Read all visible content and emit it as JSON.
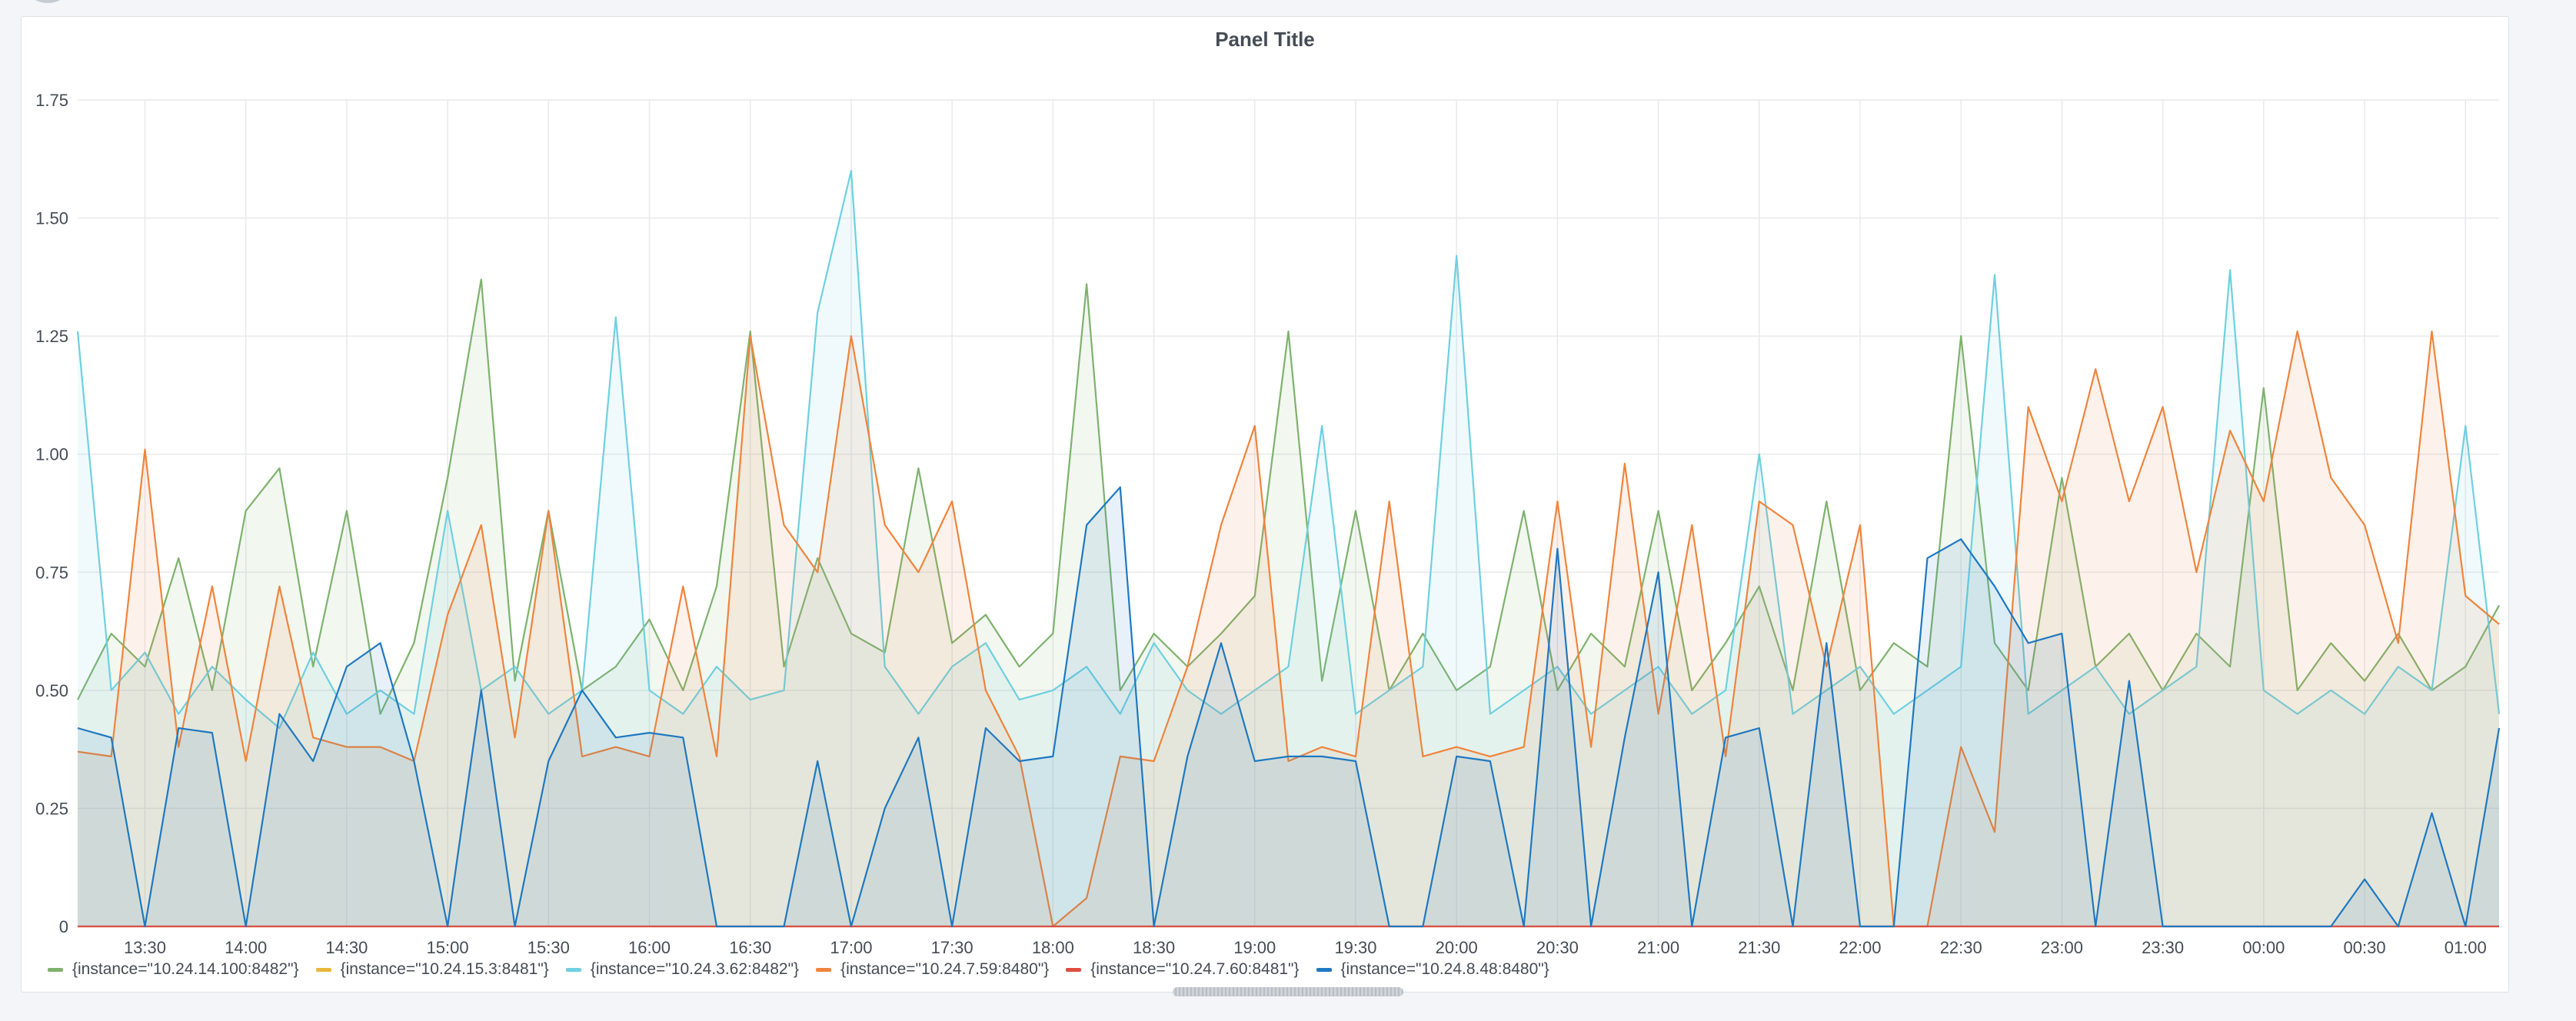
{
  "panel": {
    "title": "Panel Title"
  },
  "chart_data": {
    "type": "line",
    "title": "Panel Title",
    "xlabel": "",
    "ylabel": "",
    "ylim": [
      0,
      1.75
    ],
    "yticks": [
      "0",
      "0.25",
      "0.50",
      "0.75",
      "1.00",
      "1.25",
      "1.50",
      "1.75"
    ],
    "xticks": [
      "13:30",
      "14:00",
      "14:30",
      "15:00",
      "15:30",
      "16:00",
      "16:30",
      "17:00",
      "17:30",
      "18:00",
      "18:30",
      "19:00",
      "19:30",
      "20:00",
      "20:30",
      "21:00",
      "21:30",
      "22:00",
      "22:30",
      "23:00",
      "23:30",
      "00:00",
      "00:30",
      "01:00"
    ],
    "x_range": [
      "13:10",
      "01:10"
    ],
    "grid": true,
    "legend_position": "bottom-left",
    "stacked": false,
    "area_fill": true,
    "x": [
      "13:10",
      "13:20",
      "13:30",
      "13:40",
      "13:50",
      "14:00",
      "14:10",
      "14:20",
      "14:30",
      "14:40",
      "14:50",
      "15:00",
      "15:10",
      "15:20",
      "15:30",
      "15:40",
      "15:50",
      "16:00",
      "16:10",
      "16:20",
      "16:30",
      "16:40",
      "16:50",
      "17:00",
      "17:10",
      "17:20",
      "17:30",
      "17:40",
      "17:50",
      "18:00",
      "18:10",
      "18:20",
      "18:30",
      "18:40",
      "18:50",
      "19:00",
      "19:10",
      "19:20",
      "19:30",
      "19:40",
      "19:50",
      "20:00",
      "20:10",
      "20:20",
      "20:30",
      "20:40",
      "20:50",
      "21:00",
      "21:10",
      "21:20",
      "21:30",
      "21:40",
      "21:50",
      "22:00",
      "22:10",
      "22:20",
      "22:30",
      "22:40",
      "22:50",
      "23:00",
      "23:10",
      "23:20",
      "23:30",
      "23:40",
      "23:50",
      "00:00",
      "00:10",
      "00:20",
      "00:30",
      "00:40",
      "00:50",
      "01:00",
      "01:10"
    ],
    "series": [
      {
        "name": "{instance=\"10.24.14.100:8482\"}",
        "color": "#7eb26d",
        "values": [
          0.48,
          0.62,
          0.55,
          0.78,
          0.5,
          0.88,
          0.97,
          0.55,
          0.88,
          0.45,
          0.6,
          0.95,
          1.37,
          0.52,
          0.88,
          0.5,
          0.55,
          0.65,
          0.5,
          0.72,
          1.26,
          0.55,
          0.78,
          0.62,
          0.58,
          0.97,
          0.6,
          0.66,
          0.55,
          0.62,
          1.36,
          0.5,
          0.62,
          0.55,
          0.62,
          0.7,
          1.26,
          0.52,
          0.88,
          0.5,
          0.62,
          0.5,
          0.55,
          0.88,
          0.5,
          0.62,
          0.55,
          0.88,
          0.5,
          0.6,
          0.72,
          0.5,
          0.9,
          0.5,
          0.6,
          0.55,
          1.25,
          0.6,
          0.5,
          0.95,
          0.55,
          0.62,
          0.5,
          0.62,
          0.55,
          1.14,
          0.5,
          0.6,
          0.52,
          0.62,
          0.5,
          0.55,
          0.68
        ]
      },
      {
        "name": "{instance=\"10.24.15.3:8481\"}",
        "color": "#eab839",
        "values": [
          0,
          0,
          0,
          0,
          0,
          0,
          0,
          0,
          0,
          0,
          0,
          0,
          0,
          0,
          0,
          0,
          0,
          0,
          0,
          0,
          0,
          0,
          0,
          0,
          0,
          0,
          0,
          0,
          0,
          0,
          0,
          0,
          0,
          0,
          0,
          0,
          0,
          0,
          0,
          0,
          0,
          0,
          0,
          0,
          0,
          0,
          0,
          0,
          0,
          0,
          0,
          0,
          0,
          0,
          0,
          0,
          0,
          0,
          0,
          0,
          0,
          0,
          0,
          0,
          0,
          0,
          0,
          0,
          0,
          0,
          0,
          0,
          0
        ]
      },
      {
        "name": "{instance=\"10.24.3.62:8482\"}",
        "color": "#6ed0e0",
        "values": [
          1.26,
          0.5,
          0.58,
          0.45,
          0.55,
          0.48,
          0.42,
          0.58,
          0.45,
          0.5,
          0.45,
          0.88,
          0.5,
          0.55,
          0.45,
          0.5,
          1.29,
          0.5,
          0.45,
          0.55,
          0.48,
          0.5,
          1.3,
          1.6,
          0.55,
          0.45,
          0.55,
          0.6,
          0.48,
          0.5,
          0.55,
          0.45,
          0.6,
          0.5,
          0.45,
          0.5,
          0.55,
          1.06,
          0.45,
          0.5,
          0.55,
          1.42,
          0.45,
          0.5,
          0.55,
          0.45,
          0.5,
          0.55,
          0.45,
          0.5,
          1.0,
          0.45,
          0.5,
          0.55,
          0.45,
          0.5,
          0.55,
          1.38,
          0.45,
          0.5,
          0.55,
          0.45,
          0.5,
          0.55,
          1.39,
          0.5,
          0.45,
          0.5,
          0.45,
          0.55,
          0.5,
          1.06,
          0.45
        ]
      },
      {
        "name": "{instance=\"10.24.7.59:8480\"}",
        "color": "#ef843c",
        "values": [
          0.37,
          0.36,
          1.01,
          0.38,
          0.72,
          0.35,
          0.72,
          0.4,
          0.38,
          0.38,
          0.35,
          0.66,
          0.85,
          0.4,
          0.88,
          0.36,
          0.38,
          0.36,
          0.72,
          0.36,
          1.25,
          0.85,
          0.75,
          1.25,
          0.85,
          0.75,
          0.9,
          0.5,
          0.36,
          0.0,
          0.06,
          0.36,
          0.35,
          0.55,
          0.85,
          1.06,
          0.35,
          0.38,
          0.36,
          0.9,
          0.36,
          0.38,
          0.36,
          0.38,
          0.9,
          0.38,
          0.98,
          0.45,
          0.85,
          0.36,
          0.9,
          0.85,
          0.55,
          0.85,
          0.0,
          0.0,
          0.38,
          0.2,
          1.1,
          0.9,
          1.18,
          0.9,
          1.1,
          0.75,
          1.05,
          0.9,
          1.26,
          0.95,
          0.85,
          0.6,
          1.26,
          0.7,
          0.64
        ]
      },
      {
        "name": "{instance=\"10.24.7.60:8481\"}",
        "color": "#e24d42",
        "values": [
          0,
          0,
          0,
          0,
          0,
          0,
          0,
          0,
          0,
          0,
          0,
          0,
          0,
          0,
          0,
          0,
          0,
          0,
          0,
          0,
          0,
          0,
          0,
          0,
          0,
          0,
          0,
          0,
          0,
          0,
          0,
          0,
          0,
          0,
          0,
          0,
          0,
          0,
          0,
          0,
          0,
          0,
          0,
          0,
          0,
          0,
          0,
          0,
          0,
          0,
          0,
          0,
          0,
          0,
          0,
          0,
          0,
          0,
          0,
          0,
          0,
          0,
          0,
          0,
          0,
          0,
          0,
          0,
          0,
          0,
          0,
          0,
          0
        ]
      },
      {
        "name": "{instance=\"10.24.8.48:8480\"}",
        "color": "#1f78c1",
        "values": [
          0.42,
          0.4,
          0.0,
          0.42,
          0.41,
          0.0,
          0.45,
          0.35,
          0.55,
          0.6,
          0.35,
          0.0,
          0.5,
          0.0,
          0.35,
          0.5,
          0.4,
          0.41,
          0.4,
          0.0,
          0.0,
          0.0,
          0.35,
          0.0,
          0.25,
          0.4,
          0.0,
          0.42,
          0.35,
          0.36,
          0.85,
          0.93,
          0.0,
          0.36,
          0.6,
          0.35,
          0.36,
          0.36,
          0.35,
          0.0,
          0.0,
          0.36,
          0.35,
          0.0,
          0.8,
          0.0,
          0.4,
          0.75,
          0.0,
          0.4,
          0.42,
          0.0,
          0.6,
          0.0,
          0.0,
          0.78,
          0.82,
          0.72,
          0.6,
          0.62,
          0.0,
          0.52,
          0.0,
          0.0,
          0.0,
          0.0,
          0.0,
          0.0,
          0.1,
          0.0,
          0.24,
          0.0,
          0.42
        ]
      }
    ]
  }
}
